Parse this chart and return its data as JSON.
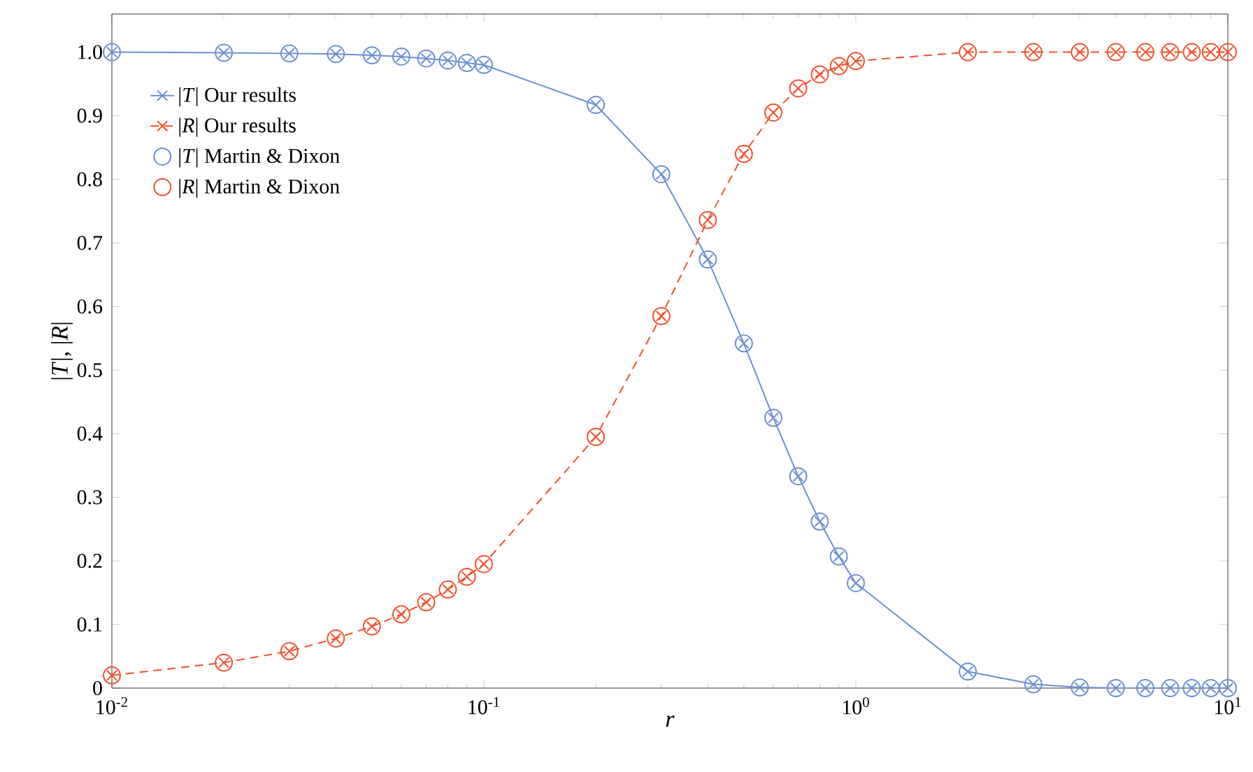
{
  "chart_data": {
    "type": "line",
    "xlabel": "*r*",
    "ylabel": "|*T*|, |*R*|",
    "log": "x",
    "legend": "top left",
    "grid": false,
    "x": [
      0.01,
      0.02,
      0.03,
      0.04,
      0.05,
      0.06,
      0.07,
      0.08,
      0.09,
      0.1,
      0.2,
      0.3,
      0.4,
      0.5,
      0.6,
      0.7,
      0.8,
      0.9,
      1,
      2,
      3,
      4,
      5,
      6,
      7,
      8,
      9,
      10
    ],
    "xlim": [
      0.01,
      10
    ],
    "ylim": [
      0,
      1.06
    ],
    "xticks": [
      {
        "value": 0.01,
        "label": "10$^{-2}$"
      },
      {
        "value": 0.1,
        "label": "10$^{-1}$"
      },
      {
        "value": 1,
        "label": "10$^{0}$"
      },
      {
        "value": 10,
        "label": "10$^{1}$"
      }
    ],
    "yticks": [
      0,
      0.1,
      0.2,
      0.3,
      0.4,
      0.5,
      0.6,
      0.7,
      0.8,
      0.9,
      {
        "value": 1,
        "label": "1.0"
      }
    ],
    "series": [
      {
        "name": "|*T*| Our results",
        "type": "line",
        "color": "#6b8fd4",
        "marker": "cross",
        "line_style": "solid",
        "values": [
          1.0,
          0.999,
          0.998,
          0.997,
          0.995,
          0.993,
          0.99,
          0.987,
          0.983,
          0.98,
          0.917,
          0.808,
          0.674,
          0.542,
          0.425,
          0.333,
          0.262,
          0.207,
          0.165,
          0.026,
          0.006,
          0.001,
          0,
          0,
          0,
          0,
          0,
          0
        ]
      },
      {
        "name": "|*R*| Our results",
        "type": "line",
        "color": "#f0502a",
        "marker": "cross",
        "line_style": "dashed",
        "values": [
          0.02,
          0.04,
          0.058,
          0.078,
          0.097,
          0.116,
          0.135,
          0.155,
          0.175,
          0.195,
          0.395,
          0.585,
          0.736,
          0.84,
          0.905,
          0.943,
          0.965,
          0.978,
          0.986,
          1.0,
          1.0,
          1.0,
          1.0,
          1.0,
          1.0,
          1.0,
          1.0,
          1.0
        ]
      },
      {
        "name": "|*T*| Martin & Dixon",
        "type": "scatter",
        "color": "#6b8fd4",
        "marker": "circle",
        "values": [
          1.0,
          0.999,
          0.998,
          0.997,
          0.995,
          0.993,
          0.99,
          0.987,
          0.983,
          0.98,
          0.917,
          0.808,
          0.674,
          0.542,
          0.425,
          0.333,
          0.262,
          0.207,
          0.165,
          0.026,
          0.006,
          0.001,
          0,
          0,
          0,
          0,
          0,
          0
        ]
      },
      {
        "name": "|*R*| Martin & Dixon",
        "type": "scatter",
        "color": "#f0502a",
        "marker": "circle",
        "values": [
          0.02,
          0.04,
          0.058,
          0.078,
          0.097,
          0.116,
          0.135,
          0.155,
          0.175,
          0.195,
          0.395,
          0.585,
          0.736,
          0.84,
          0.905,
          0.943,
          0.965,
          0.978,
          0.986,
          1.0,
          1.0,
          1.0,
          1.0,
          1.0,
          1.0,
          1.0,
          1.0,
          1.0
        ]
      }
    ]
  }
}
